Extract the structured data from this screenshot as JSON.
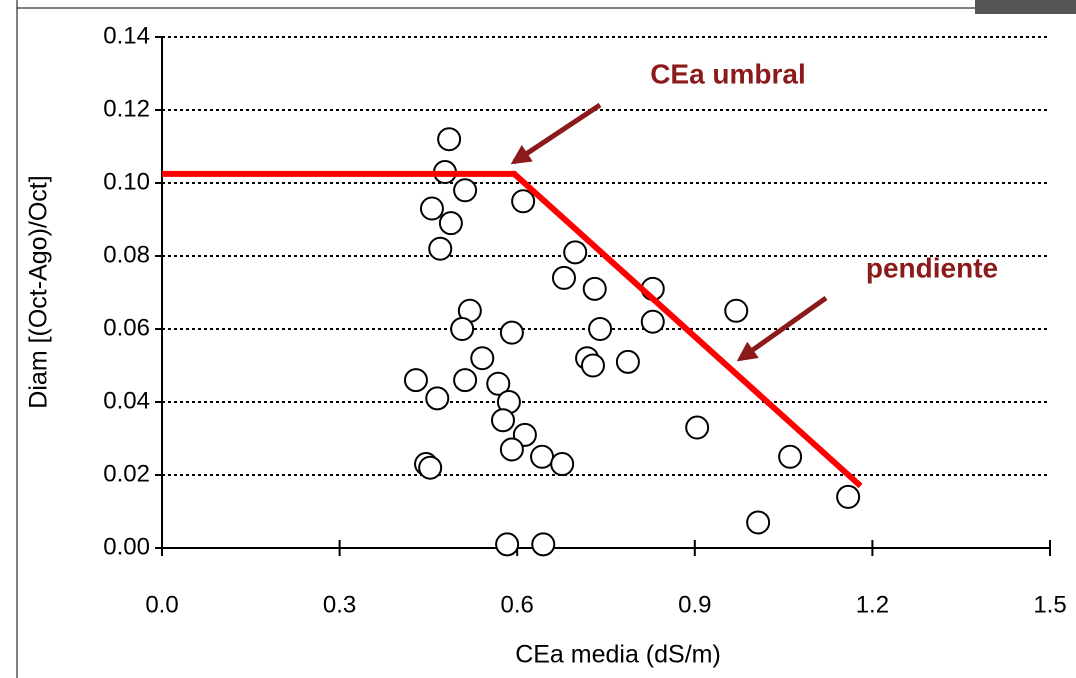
{
  "chart_data": {
    "type": "scatter",
    "xlabel": "CEa media (dS/m)",
    "ylabel": "Diam [(Oct-Ago)/Oct]",
    "xlim": [
      0,
      1.5
    ],
    "ylim": [
      0,
      0.14
    ],
    "xticks": [
      {
        "value": 0,
        "label": "0.0"
      },
      {
        "value": 0.3,
        "label": "0.3"
      },
      {
        "value": 0.6,
        "label": "0.6"
      },
      {
        "value": 0.9,
        "label": "0.9"
      },
      {
        "value": 1.2,
        "label": "1.2"
      },
      {
        "value": 1.5,
        "label": "1.5"
      }
    ],
    "yticks": [
      {
        "value": 0,
        "label": "0.00"
      },
      {
        "value": 0.02,
        "label": "0.02"
      },
      {
        "value": 0.04,
        "label": "0.04"
      },
      {
        "value": 0.06,
        "label": "0.06"
      },
      {
        "value": 0.08,
        "label": "0.08"
      },
      {
        "value": 0.1,
        "label": "0.10"
      },
      {
        "value": 0.12,
        "label": "0.12"
      },
      {
        "value": 0.14,
        "label": "0.14"
      }
    ],
    "grid": true,
    "points": {
      "color": "#ffffff",
      "x": [
        0.485,
        0.478,
        0.512,
        0.456,
        0.488,
        0.47,
        0.61,
        0.698,
        0.679,
        0.731,
        0.829,
        0.829,
        0.97,
        0.52,
        0.507,
        0.74,
        0.591,
        0.541,
        0.718,
        0.728,
        0.787,
        0.429,
        0.512,
        0.568,
        0.465,
        0.586,
        0.576,
        0.613,
        0.591,
        0.642,
        0.676,
        0.446,
        0.453,
        0.904,
        1.061,
        1.159,
        1.007,
        0.583,
        0.644
      ],
      "values": [
        0.112,
        0.103,
        0.098,
        0.093,
        0.089,
        0.082,
        0.095,
        0.081,
        0.074,
        0.071,
        0.071,
        0.062,
        0.065,
        0.065,
        0.06,
        0.06,
        0.059,
        0.052,
        0.052,
        0.05,
        0.051,
        0.046,
        0.046,
        0.045,
        0.041,
        0.04,
        0.035,
        0.031,
        0.027,
        0.025,
        0.023,
        0.023,
        0.022,
        0.033,
        0.025,
        0.014,
        0.007,
        0.001,
        0.001
      ]
    },
    "fit_line": {
      "color": "#ff0000",
      "x": [
        0,
        0.595,
        1.18
      ],
      "values": [
        0.1025,
        0.1025,
        0.017
      ]
    },
    "annotations": [
      {
        "text": "CEa umbral",
        "color": "#8b1a1a"
      },
      {
        "text": "pendiente",
        "color": "#8b1a1a"
      }
    ]
  }
}
